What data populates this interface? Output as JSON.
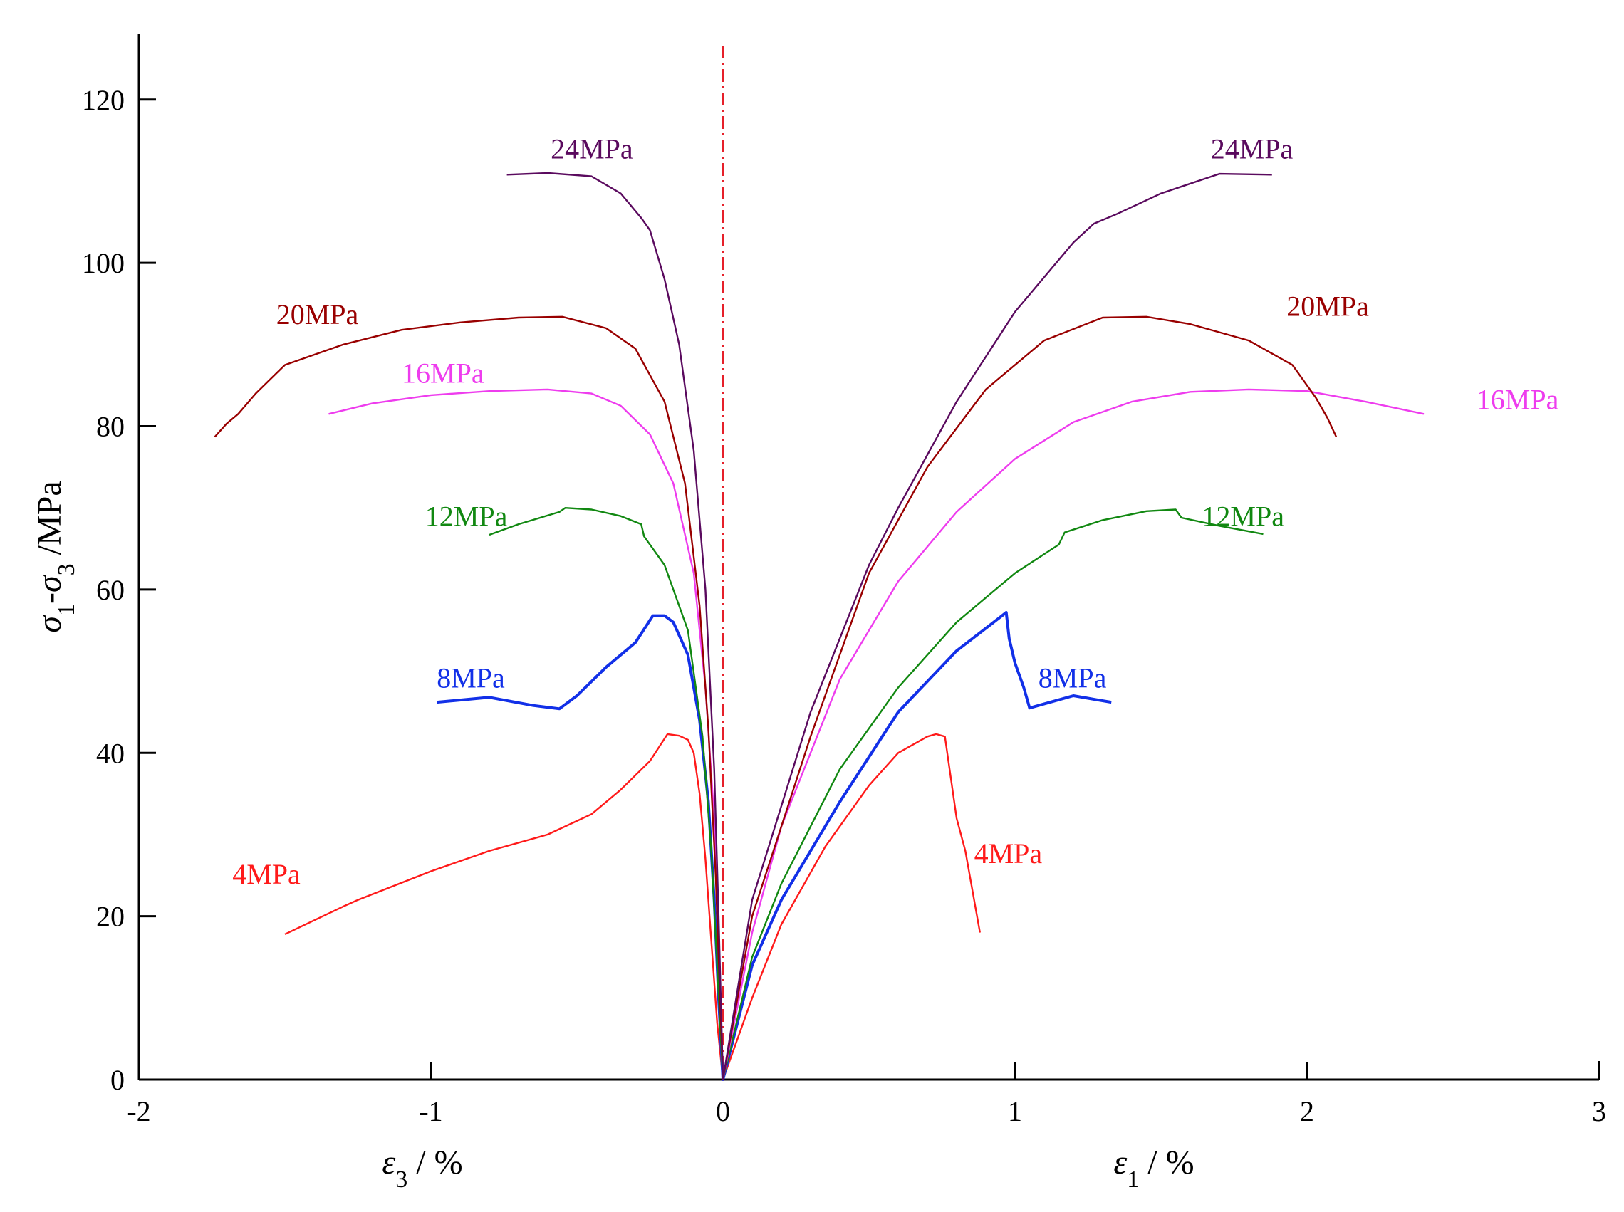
{
  "chart_data": {
    "type": "line",
    "title": "",
    "ylabel_parts": [
      "σ",
      "1",
      "-σ",
      "3",
      " /MPa"
    ],
    "xlabel_left_parts": [
      "ε",
      "3",
      " / %"
    ],
    "xlabel_right_parts": [
      "ε",
      "1",
      " / %"
    ],
    "xlim": [
      -2,
      3
    ],
    "ylim": [
      0,
      128
    ],
    "x_ticks": [
      -2,
      -1,
      0,
      1,
      2,
      3
    ],
    "x_tick_labels": [
      "-2",
      "-1",
      "0",
      "1",
      "2",
      "3"
    ],
    "y_ticks": [
      0,
      20,
      40,
      60,
      80,
      100,
      120
    ],
    "y_tick_labels": [
      "0",
      "20",
      "40",
      "60",
      "80",
      "100",
      "120"
    ],
    "grid": false,
    "reference_line": {
      "x": 0,
      "style": "dash-dot",
      "color": "#e6202a"
    },
    "series": [
      {
        "name": "4MPa",
        "color": "#ff1a1a",
        "label_left": "4MPa",
        "label_right": "4MPa",
        "label_left_at": [
          -1.68,
          24
        ],
        "label_right_at": [
          0.86,
          26.5
        ],
        "points": [
          [
            -1.5,
            17.8
          ],
          [
            -1.3,
            21.2
          ],
          [
            -1.25,
            22
          ],
          [
            -1.0,
            25.5
          ],
          [
            -0.8,
            28
          ],
          [
            -0.6,
            30
          ],
          [
            -0.45,
            32.5
          ],
          [
            -0.35,
            35.5
          ],
          [
            -0.25,
            39
          ],
          [
            -0.19,
            42.3
          ],
          [
            -0.15,
            42.1
          ],
          [
            -0.12,
            41.6
          ],
          [
            -0.1,
            40
          ],
          [
            -0.08,
            35
          ],
          [
            -0.06,
            27
          ],
          [
            -0.04,
            17
          ],
          [
            -0.02,
            7
          ],
          [
            0,
            0
          ],
          [
            0.1,
            10
          ],
          [
            0.2,
            19
          ],
          [
            0.35,
            28.5
          ],
          [
            0.5,
            36
          ],
          [
            0.6,
            40
          ],
          [
            0.7,
            42
          ],
          [
            0.73,
            42.3
          ],
          [
            0.76,
            42
          ],
          [
            0.78,
            37
          ],
          [
            0.8,
            32
          ],
          [
            0.83,
            28
          ],
          [
            0.86,
            22
          ],
          [
            0.88,
            18
          ]
        ]
      },
      {
        "name": "8MPa",
        "color": "#1230e8",
        "label_left": "8MPa",
        "label_right": "8MPa",
        "label_left_at": [
          -0.98,
          48
        ],
        "label_right_at": [
          1.08,
          48
        ],
        "points": [
          [
            -0.98,
            46.2
          ],
          [
            -0.8,
            46.8
          ],
          [
            -0.65,
            45.8
          ],
          [
            -0.56,
            45.4
          ],
          [
            -0.5,
            47
          ],
          [
            -0.4,
            50.5
          ],
          [
            -0.3,
            53.5
          ],
          [
            -0.24,
            56.8
          ],
          [
            -0.2,
            56.8
          ],
          [
            -0.17,
            56
          ],
          [
            -0.12,
            52
          ],
          [
            -0.08,
            44
          ],
          [
            -0.05,
            34
          ],
          [
            -0.03,
            22
          ],
          [
            -0.015,
            10
          ],
          [
            0,
            0
          ],
          [
            0.1,
            14
          ],
          [
            0.2,
            22
          ],
          [
            0.4,
            34
          ],
          [
            0.6,
            45
          ],
          [
            0.8,
            52.5
          ],
          [
            0.92,
            55.8
          ],
          [
            0.97,
            57.2
          ],
          [
            0.98,
            54
          ],
          [
            1.0,
            51
          ],
          [
            1.03,
            48
          ],
          [
            1.05,
            45.5
          ],
          [
            1.1,
            46
          ],
          [
            1.2,
            47
          ],
          [
            1.28,
            46.5
          ],
          [
            1.33,
            46.2
          ]
        ]
      },
      {
        "name": "12MPa",
        "color": "#118811",
        "label_left": "12MPa",
        "label_right": "12MPa",
        "label_left_at": [
          -1.02,
          67.8
        ],
        "label_right_at": [
          1.64,
          67.8
        ],
        "points": [
          [
            -0.8,
            66.7
          ],
          [
            -0.7,
            68
          ],
          [
            -0.56,
            69.5
          ],
          [
            -0.54,
            70
          ],
          [
            -0.45,
            69.8
          ],
          [
            -0.35,
            69
          ],
          [
            -0.28,
            68
          ],
          [
            -0.27,
            66.5
          ],
          [
            -0.2,
            63
          ],
          [
            -0.12,
            55
          ],
          [
            -0.07,
            42
          ],
          [
            -0.04,
            28
          ],
          [
            -0.02,
            14
          ],
          [
            0,
            0
          ],
          [
            0.1,
            15
          ],
          [
            0.2,
            24
          ],
          [
            0.4,
            38
          ],
          [
            0.6,
            48
          ],
          [
            0.8,
            56
          ],
          [
            1.0,
            62
          ],
          [
            1.15,
            65.5
          ],
          [
            1.17,
            67
          ],
          [
            1.3,
            68.5
          ],
          [
            1.45,
            69.6
          ],
          [
            1.55,
            69.8
          ],
          [
            1.57,
            68.8
          ],
          [
            1.7,
            67.8
          ],
          [
            1.85,
            66.8
          ]
        ]
      },
      {
        "name": "16MPa",
        "color": "#ee3cee",
        "label_left": "16MPa",
        "label_right": "16MPa",
        "label_left_at": [
          -1.1,
          85.3
        ],
        "label_right_at": [
          2.58,
          82.1
        ],
        "points": [
          [
            -1.35,
            81.5
          ],
          [
            -1.2,
            82.8
          ],
          [
            -1.0,
            83.8
          ],
          [
            -0.8,
            84.3
          ],
          [
            -0.6,
            84.5
          ],
          [
            -0.45,
            84
          ],
          [
            -0.35,
            82.5
          ],
          [
            -0.25,
            79
          ],
          [
            -0.17,
            73
          ],
          [
            -0.1,
            62
          ],
          [
            -0.06,
            48
          ],
          [
            -0.03,
            32
          ],
          [
            -0.015,
            16
          ],
          [
            0,
            0
          ],
          [
            0.1,
            18
          ],
          [
            0.2,
            31
          ],
          [
            0.4,
            49
          ],
          [
            0.6,
            61
          ],
          [
            0.8,
            69.5
          ],
          [
            1.0,
            76
          ],
          [
            1.2,
            80.5
          ],
          [
            1.4,
            83
          ],
          [
            1.6,
            84.2
          ],
          [
            1.8,
            84.5
          ],
          [
            2.0,
            84.3
          ],
          [
            2.2,
            83
          ],
          [
            2.4,
            81.5
          ]
        ]
      },
      {
        "name": "20MPa",
        "color": "#990000",
        "label_left": "20MPa",
        "label_right": "20MPa",
        "label_left_at": [
          -1.53,
          92.5
        ],
        "label_right_at": [
          1.93,
          93.5
        ],
        "points": [
          [
            -1.74,
            78.7
          ],
          [
            -1.7,
            80.3
          ],
          [
            -1.66,
            81.5
          ],
          [
            -1.6,
            84
          ],
          [
            -1.5,
            87.5
          ],
          [
            -1.3,
            90
          ],
          [
            -1.1,
            91.8
          ],
          [
            -0.9,
            92.7
          ],
          [
            -0.7,
            93.3
          ],
          [
            -0.55,
            93.4
          ],
          [
            -0.4,
            92
          ],
          [
            -0.3,
            89.5
          ],
          [
            -0.2,
            83
          ],
          [
            -0.13,
            73
          ],
          [
            -0.08,
            58
          ],
          [
            -0.05,
            43
          ],
          [
            -0.025,
            25
          ],
          [
            0,
            0
          ],
          [
            0.1,
            20
          ],
          [
            0.3,
            42
          ],
          [
            0.5,
            62
          ],
          [
            0.7,
            75
          ],
          [
            0.9,
            84.5
          ],
          [
            1.1,
            90.5
          ],
          [
            1.3,
            93.3
          ],
          [
            1.45,
            93.4
          ],
          [
            1.6,
            92.5
          ],
          [
            1.8,
            90.5
          ],
          [
            1.95,
            87.5
          ],
          [
            2.03,
            83.5
          ],
          [
            2.07,
            81
          ],
          [
            2.1,
            78.7
          ]
        ]
      },
      {
        "name": "24MPa",
        "color": "#5a0a5e",
        "label_left": "24MPa",
        "label_right": "24MPa",
        "label_left_at": [
          -0.59,
          112.8
        ],
        "label_right_at": [
          1.67,
          112.8
        ],
        "points": [
          [
            -0.74,
            110.8
          ],
          [
            -0.6,
            111
          ],
          [
            -0.45,
            110.6
          ],
          [
            -0.35,
            108.5
          ],
          [
            -0.28,
            105.5
          ],
          [
            -0.25,
            104
          ],
          [
            -0.2,
            98
          ],
          [
            -0.15,
            90
          ],
          [
            -0.1,
            77
          ],
          [
            -0.06,
            60
          ],
          [
            -0.03,
            38
          ],
          [
            -0.015,
            20
          ],
          [
            0,
            0
          ],
          [
            0.1,
            22
          ],
          [
            0.3,
            45
          ],
          [
            0.5,
            63
          ],
          [
            0.6,
            70
          ],
          [
            0.8,
            83
          ],
          [
            1.0,
            94
          ],
          [
            1.2,
            102.5
          ],
          [
            1.27,
            104.8
          ],
          [
            1.35,
            106
          ],
          [
            1.5,
            108.5
          ],
          [
            1.7,
            110.9
          ],
          [
            1.88,
            110.8
          ]
        ]
      }
    ]
  }
}
